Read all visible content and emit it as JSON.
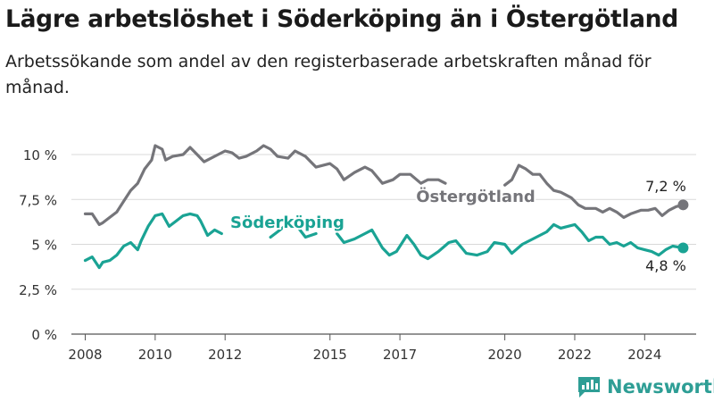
{
  "header": {
    "title": "Lägre arbetslöshet i Söderköping än i Östergötland",
    "subtitle": "Arbetssökande som andel av den registerbaserade arbetskraften månad för månad."
  },
  "brand": {
    "name": "Newsworthy"
  },
  "colors": {
    "ostergotland": "#75757a",
    "soderkoping": "#1aa394",
    "grid": "#d9d9d9"
  },
  "chart_data": {
    "type": "line",
    "title": "Lägre arbetslöshet i Söderköping än i Östergötland",
    "subtitle": "Arbetssökande som andel av den registerbaserade arbetskraften månad för månad.",
    "x_unit": "year",
    "xlim": [
      2007.4,
      2025.6
    ],
    "ylim": [
      0,
      10.5
    ],
    "x_ticks": [
      2008,
      2010,
      2012,
      2015,
      2017,
      2020,
      2022,
      2024
    ],
    "x_tick_labels": [
      "2008",
      "2010",
      "2012",
      "2015",
      "2017",
      "2020",
      "2022",
      "2024"
    ],
    "y_ticks": [
      0,
      2.5,
      5,
      7.5,
      10
    ],
    "y_tick_labels": [
      "0 %",
      "2,5 %",
      "5 %",
      "7,5 %",
      "10 %"
    ],
    "grid": "horizontal",
    "series": [
      {
        "name": "Östergötland",
        "color": "#75757a",
        "end_label": "7,2 %",
        "points": [
          [
            2008.0,
            6.7
          ],
          [
            2008.2,
            6.7
          ],
          [
            2008.4,
            6.1
          ],
          [
            2008.5,
            6.2
          ],
          [
            2008.7,
            6.5
          ],
          [
            2008.9,
            6.8
          ],
          [
            2009.1,
            7.4
          ],
          [
            2009.3,
            8.0
          ],
          [
            2009.5,
            8.4
          ],
          [
            2009.7,
            9.2
          ],
          [
            2009.9,
            9.7
          ],
          [
            2010.0,
            10.5
          ],
          [
            2010.2,
            10.3
          ],
          [
            2010.3,
            9.7
          ],
          [
            2010.5,
            9.9
          ],
          [
            2010.8,
            10.0
          ],
          [
            2011.0,
            10.4
          ],
          [
            2011.2,
            10.0
          ],
          [
            2011.4,
            9.6
          ],
          [
            2011.6,
            9.8
          ],
          [
            2011.8,
            10.0
          ],
          [
            2012.0,
            10.2
          ],
          [
            2012.2,
            10.1
          ],
          [
            2012.4,
            9.8
          ],
          [
            2012.6,
            9.9
          ],
          [
            2012.9,
            10.2
          ],
          [
            2013.1,
            10.5
          ],
          [
            2013.3,
            10.3
          ],
          [
            2013.5,
            9.9
          ],
          [
            2013.8,
            9.8
          ],
          [
            2014.0,
            10.2
          ],
          [
            2014.3,
            9.9
          ],
          [
            2014.6,
            9.3
          ],
          [
            2015.0,
            9.5
          ],
          [
            2015.2,
            9.2
          ],
          [
            2015.4,
            8.6
          ],
          [
            2015.7,
            9.0
          ],
          [
            2016.0,
            9.3
          ],
          [
            2016.2,
            9.1
          ],
          [
            2016.5,
            8.4
          ],
          [
            2016.8,
            8.6
          ],
          [
            2017.0,
            8.9
          ],
          [
            2017.3,
            8.9
          ],
          [
            2017.6,
            8.4
          ],
          [
            2017.8,
            8.6
          ],
          [
            2018.1,
            8.6
          ],
          [
            2018.3,
            8.4
          ],
          [
            2020.0,
            8.3
          ],
          [
            2020.2,
            8.6
          ],
          [
            2020.4,
            9.4
          ],
          [
            2020.6,
            9.2
          ],
          [
            2020.8,
            8.9
          ],
          [
            2021.0,
            8.9
          ],
          [
            2021.2,
            8.4
          ],
          [
            2021.4,
            8.0
          ],
          [
            2021.6,
            7.9
          ],
          [
            2021.9,
            7.6
          ],
          [
            2022.1,
            7.2
          ],
          [
            2022.3,
            7.0
          ],
          [
            2022.6,
            7.0
          ],
          [
            2022.8,
            6.8
          ],
          [
            2023.0,
            7.0
          ],
          [
            2023.2,
            6.8
          ],
          [
            2023.4,
            6.5
          ],
          [
            2023.6,
            6.7
          ],
          [
            2023.9,
            6.9
          ],
          [
            2024.1,
            6.9
          ],
          [
            2024.3,
            7.0
          ],
          [
            2024.5,
            6.6
          ],
          [
            2024.7,
            6.9
          ],
          [
            2024.9,
            7.1
          ],
          [
            2025.1,
            7.2
          ]
        ]
      },
      {
        "name": "Söderköping",
        "color": "#1aa394",
        "end_label": "4,8 %",
        "points": [
          [
            2008.0,
            4.1
          ],
          [
            2008.2,
            4.3
          ],
          [
            2008.4,
            3.7
          ],
          [
            2008.5,
            4.0
          ],
          [
            2008.7,
            4.1
          ],
          [
            2008.9,
            4.4
          ],
          [
            2009.1,
            4.9
          ],
          [
            2009.3,
            5.1
          ],
          [
            2009.5,
            4.7
          ],
          [
            2009.6,
            5.2
          ],
          [
            2009.8,
            6.0
          ],
          [
            2010.0,
            6.6
          ],
          [
            2010.2,
            6.7
          ],
          [
            2010.4,
            6.0
          ],
          [
            2010.6,
            6.3
          ],
          [
            2010.8,
            6.6
          ],
          [
            2011.0,
            6.7
          ],
          [
            2011.2,
            6.6
          ],
          [
            2011.3,
            6.3
          ],
          [
            2011.5,
            5.5
          ],
          [
            2011.7,
            5.8
          ],
          [
            2011.9,
            5.6
          ],
          [
            2013.3,
            5.4
          ],
          [
            2013.5,
            5.7
          ],
          [
            2013.7,
            6.0
          ],
          [
            2013.9,
            6.1
          ],
          [
            2014.1,
            5.9
          ],
          [
            2014.3,
            5.4
          ],
          [
            2014.6,
            5.6
          ],
          [
            2015.2,
            5.6
          ],
          [
            2015.4,
            5.1
          ],
          [
            2015.7,
            5.3
          ],
          [
            2016.0,
            5.6
          ],
          [
            2016.2,
            5.8
          ],
          [
            2016.5,
            4.8
          ],
          [
            2016.7,
            4.4
          ],
          [
            2016.9,
            4.6
          ],
          [
            2017.2,
            5.5
          ],
          [
            2017.4,
            5.0
          ],
          [
            2017.6,
            4.4
          ],
          [
            2017.8,
            4.2
          ],
          [
            2018.1,
            4.6
          ],
          [
            2018.4,
            5.1
          ],
          [
            2018.6,
            5.2
          ],
          [
            2018.9,
            4.5
          ],
          [
            2019.2,
            4.4
          ],
          [
            2019.5,
            4.6
          ],
          [
            2019.7,
            5.1
          ],
          [
            2020.0,
            5.0
          ],
          [
            2020.2,
            4.5
          ],
          [
            2020.5,
            5.0
          ],
          [
            2020.8,
            5.3
          ],
          [
            2021.0,
            5.5
          ],
          [
            2021.2,
            5.7
          ],
          [
            2021.4,
            6.1
          ],
          [
            2021.6,
            5.9
          ],
          [
            2021.8,
            6.0
          ],
          [
            2022.0,
            6.1
          ],
          [
            2022.2,
            5.7
          ],
          [
            2022.4,
            5.2
          ],
          [
            2022.6,
            5.4
          ],
          [
            2022.8,
            5.4
          ],
          [
            2023.0,
            5.0
          ],
          [
            2023.2,
            5.1
          ],
          [
            2023.4,
            4.9
          ],
          [
            2023.6,
            5.1
          ],
          [
            2023.8,
            4.8
          ],
          [
            2024.0,
            4.7
          ],
          [
            2024.2,
            4.6
          ],
          [
            2024.4,
            4.4
          ],
          [
            2024.6,
            4.7
          ],
          [
            2024.8,
            4.9
          ],
          [
            2025.1,
            4.8
          ]
        ],
        "inline_label": "Söderköping"
      }
    ],
    "annotations": [
      "Östergötland",
      "Söderköping",
      "7,2 %",
      "4,8 %"
    ]
  }
}
